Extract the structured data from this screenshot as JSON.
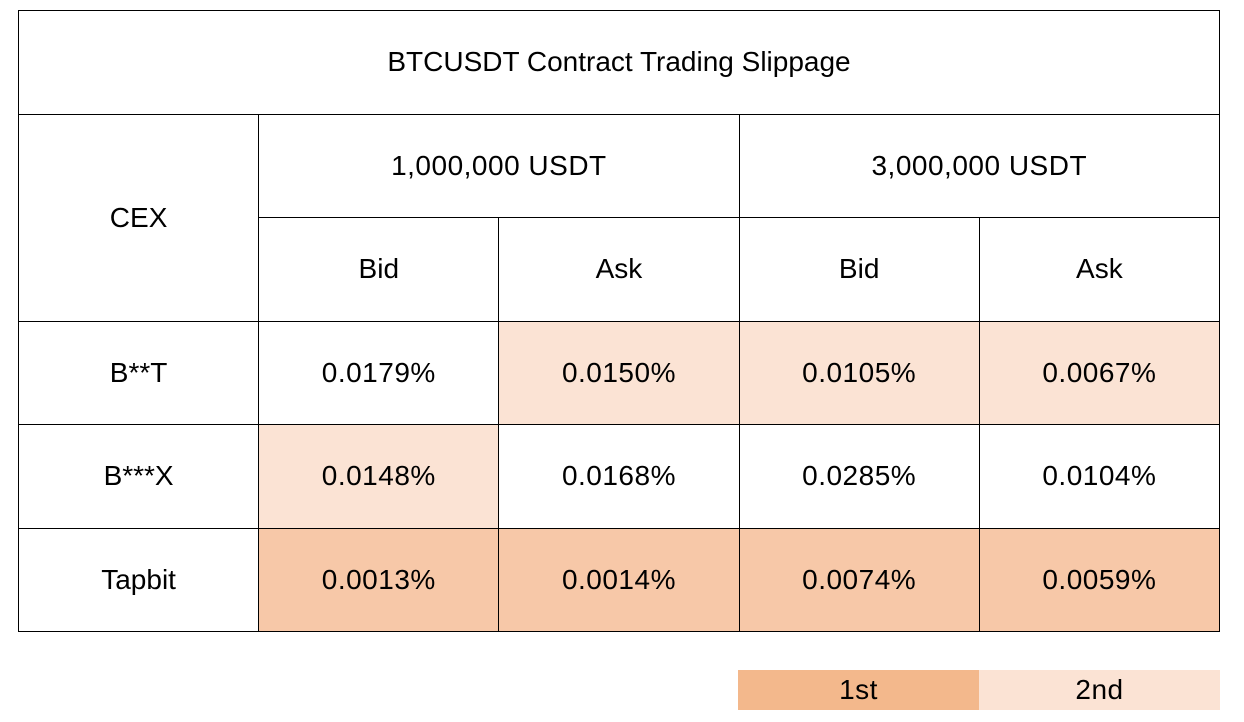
{
  "chart_data": {
    "type": "table",
    "title": "BTCUSDT Contract Trading Slippage",
    "row_header": "CEX",
    "column_groups": [
      {
        "label": "1,000,000 USDT",
        "sub": [
          "Bid",
          "Ask"
        ]
      },
      {
        "label": "3,000,000 USDT",
        "sub": [
          "Bid",
          "Ask"
        ]
      }
    ],
    "rows": [
      {
        "name": "B**T",
        "values": [
          "0.0179%",
          "0.0150%",
          "0.0105%",
          "0.0067%"
        ],
        "rank": [
          0,
          2,
          2,
          2
        ]
      },
      {
        "name": "B***X",
        "values": [
          "0.0148%",
          "0.0168%",
          "0.0285%",
          "0.0104%"
        ],
        "rank": [
          2,
          0,
          0,
          0
        ]
      },
      {
        "name": "Tapbit",
        "values": [
          "0.0013%",
          "0.0014%",
          "0.0074%",
          "0.0059%"
        ],
        "rank": [
          1,
          1,
          1,
          1
        ]
      }
    ],
    "legend": [
      {
        "label": "1st",
        "color": "#f3b88c"
      },
      {
        "label": "2nd",
        "color": "#fbe3d4"
      }
    ],
    "highlight_colors": {
      "first": "#f7c8a8",
      "second": "#fbe3d4"
    }
  }
}
